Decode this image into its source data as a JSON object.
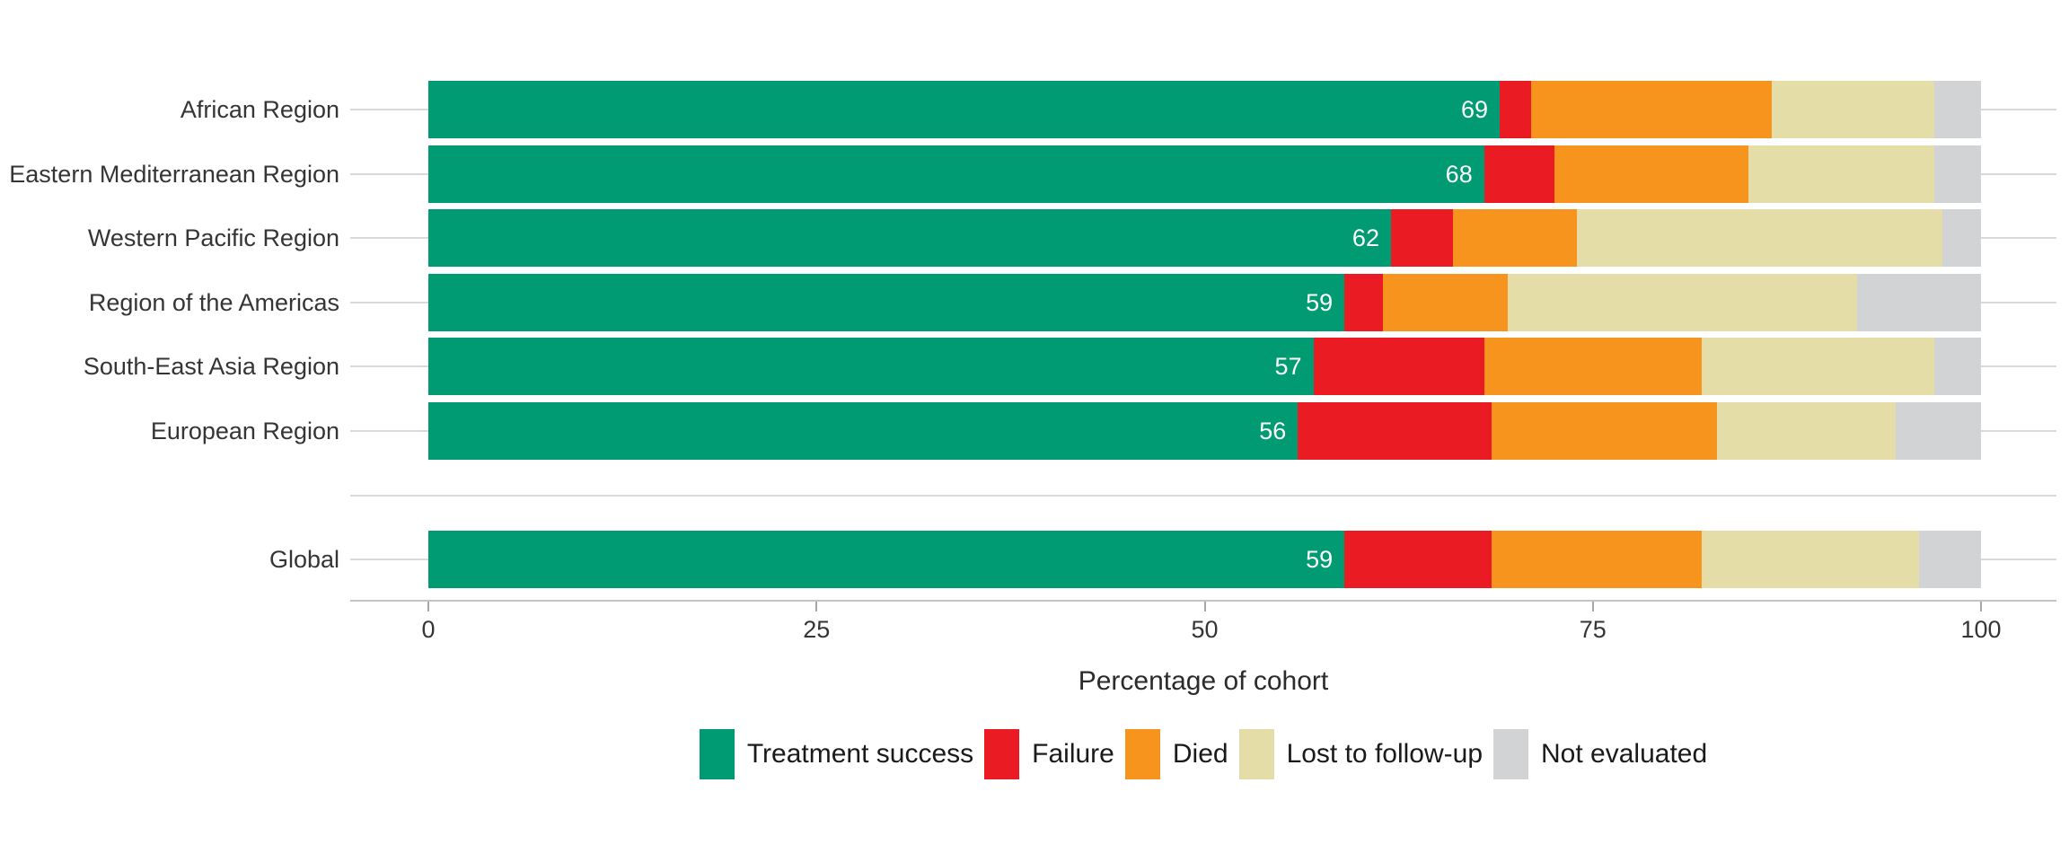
{
  "chart_data": {
    "type": "bar",
    "stacked": true,
    "orientation": "horizontal",
    "title": "",
    "xlabel": "Percentage of cohort",
    "ylabel": "",
    "xlim": [
      0,
      100
    ],
    "xticks": [
      "0",
      "25",
      "50",
      "75",
      "100"
    ],
    "xtick_values": [
      0,
      25,
      50,
      75,
      100
    ],
    "grid": "light horizontal gridline per category row",
    "legend_position": "bottom",
    "categories": [
      "African Region",
      "Eastern Mediterranean Region",
      "Western Pacific Region",
      "Region of the Americas",
      "South-East Asia Region",
      "European Region",
      "",
      "Global"
    ],
    "series": [
      {
        "name": "Treatment success",
        "color": "#009b72",
        "values": [
          69,
          68,
          62,
          59,
          57,
          56,
          null,
          59
        ]
      },
      {
        "name": "Failure",
        "color": "#eb1b23",
        "values": [
          2,
          4.5,
          4,
          2.5,
          11,
          12.5,
          null,
          9.5
        ]
      },
      {
        "name": "Died",
        "color": "#f7941e",
        "values": [
          15.5,
          12.5,
          8,
          8,
          14,
          14.5,
          null,
          13.5
        ]
      },
      {
        "name": "Lost to follow-up",
        "color": "#e4dda8",
        "values": [
          10.5,
          12,
          23.5,
          22.5,
          15,
          11.5,
          null,
          14
        ]
      },
      {
        "name": "Not evaluated",
        "color": "#d1d3d4",
        "values": [
          3,
          3,
          2.5,
          8,
          3,
          5.5,
          null,
          4
        ]
      }
    ],
    "bar_labels": [
      "69",
      "68",
      "62",
      "59",
      "57",
      "56",
      null,
      "59"
    ],
    "bar_label_color": "#ffffff"
  }
}
